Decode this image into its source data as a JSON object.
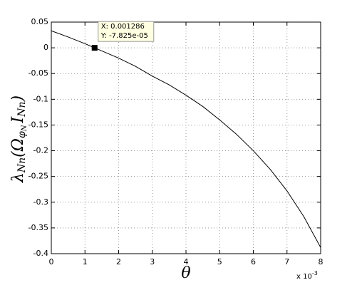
{
  "chart_data": {
    "type": "line",
    "xlabel": "θ",
    "ylabel": [
      "λ",
      "Nn",
      "(Ω",
      "φ",
      "N",
      "I",
      "Nn",
      ")"
    ],
    "xexponent": [
      "x 10",
      "-3"
    ],
    "x": [
      0,
      0.5,
      1,
      1.5,
      2,
      2.5,
      3,
      3.5,
      4,
      4.5,
      5,
      5.5,
      6,
      6.5,
      7,
      7.5,
      8
    ],
    "series": [
      {
        "color": "#000000",
        "values": [
          0.033,
          0.021,
          0.008,
          -0.006,
          -0.02,
          -0.036,
          -0.055,
          -0.072,
          -0.092,
          -0.114,
          -0.14,
          -0.168,
          -0.2,
          -0.236,
          -0.278,
          -0.328,
          -0.388
        ]
      }
    ],
    "xlim": [
      0,
      8
    ],
    "xticks": [
      0,
      1,
      2,
      3,
      4,
      5,
      6,
      7,
      8
    ],
    "ylim": [
      -0.4,
      0.05
    ],
    "yticks": [
      -0.4,
      -0.35,
      -0.3,
      -0.25,
      -0.2,
      -0.15,
      -0.1,
      -0.05,
      0,
      0.05
    ],
    "grid": true,
    "datatip": {
      "x": 1.286,
      "y": -7.825e-05,
      "label_x": "X: 0.001286",
      "label_y": "Y: -7.825e-05"
    }
  }
}
